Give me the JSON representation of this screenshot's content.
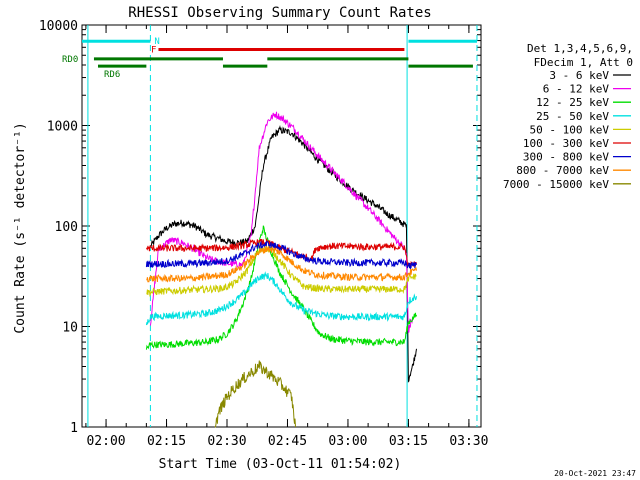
{
  "chart_data": {
    "type": "line",
    "title": "RHESSI Observing Summary Count Rates",
    "xlabel": "Start Time (03-Oct-11 01:54:02)",
    "ylabel": "Count Rate (s⁻¹ detector⁻¹)",
    "y_scale": "log",
    "ylim": [
      1,
      10000
    ],
    "xlim": [
      "01:54:02",
      "03:33:00"
    ],
    "x_ticks": [
      "02:00",
      "02:15",
      "02:30",
      "02:45",
      "03:00",
      "03:15",
      "03:30"
    ],
    "y_ticks": [
      1,
      10,
      100,
      1000,
      10000
    ],
    "grid": false,
    "legend_position": "right",
    "legend_header": [
      "Det 1,3,4,5,6,9,",
      "FDecim 1, Att 0"
    ],
    "footer_date": "20-Oct-2021 23:47",
    "colors": {
      "cyan": "#00e0e0",
      "flag_red": "#dd0000",
      "flag_green": "#007700"
    },
    "flags": [
      {
        "label": "N",
        "color": "#00e0e0",
        "y": 6900,
        "segments": [
          [
            "01:54:02",
            "02:11:00"
          ],
          [
            "03:15:00",
            "03:32:00"
          ]
        ]
      },
      {
        "label": "F",
        "color": "#dd0000",
        "y": 5700,
        "segments": [
          [
            "02:13:00",
            "03:14:00"
          ]
        ]
      },
      {
        "label": "RD0",
        "color": "#007700",
        "y": 4600,
        "segments": [
          [
            "01:57:00",
            "02:29:00"
          ],
          [
            "02:40:00",
            "03:15:00"
          ]
        ]
      },
      {
        "label": "RD6",
        "color": "#007700",
        "y": 3900,
        "segments": [
          [
            "01:58:00",
            "02:10:00"
          ],
          [
            "02:29:00",
            "02:40:00"
          ],
          [
            "03:15:00",
            "03:31:00"
          ]
        ]
      }
    ],
    "vlines": [
      {
        "time": "01:55:30",
        "color": "#00e0e0",
        "style": "solid"
      },
      {
        "time": "02:11:00",
        "color": "#00e0e0",
        "style": "dashed"
      },
      {
        "time": "03:14:40",
        "color": "#00e0e0",
        "style": "solid"
      },
      {
        "time": "03:32:00",
        "color": "#00e0e0",
        "style": "dashed"
      }
    ],
    "series": [
      {
        "name": "3 - 6 keV",
        "color": "#000000",
        "x": [
          "02:11:00",
          "02:13:00",
          "02:15:00",
          "02:17:00",
          "02:19:00",
          "02:22:00",
          "02:25:00",
          "02:28:00",
          "02:30:00",
          "02:33:00",
          "02:35:00",
          "02:37:00",
          "02:39:00",
          "02:41:00",
          "02:43:00",
          "02:46:00",
          "02:49:00",
          "02:52:00",
          "02:55:00",
          "02:58:00",
          "03:01:00",
          "03:04:00",
          "03:07:00",
          "03:10:00",
          "03:13:00",
          "03:14:30",
          "03:15:00",
          "03:16:00",
          "03:17:00"
        ],
        "y": [
          62,
          80,
          95,
          105,
          108,
          100,
          82,
          75,
          70,
          68,
          70,
          100,
          400,
          750,
          900,
          850,
          650,
          480,
          370,
          290,
          230,
          190,
          160,
          130,
          110,
          100,
          3,
          4,
          6
        ]
      },
      {
        "name": "6 - 12 keV",
        "color": "#ee00ee",
        "x": [
          "02:11:00",
          "02:13:00",
          "02:16:00",
          "02:19:00",
          "02:22:00",
          "02:25:00",
          "02:28:00",
          "02:31:00",
          "02:34:00",
          "02:36:00",
          "02:38:00",
          "02:40:00",
          "02:42:00",
          "02:44:00",
          "02:47:00",
          "02:50:00",
          "02:53:00",
          "02:56:00",
          "02:59:00",
          "03:02:00",
          "03:05:00",
          "03:08:00",
          "03:11:00",
          "03:14:00",
          "03:14:30",
          "03:15:00",
          "03:16:00"
        ],
        "y": [
          10.5,
          58,
          73,
          68,
          58,
          48,
          44,
          42,
          41,
          80,
          600,
          1100,
          1300,
          1150,
          900,
          650,
          480,
          360,
          270,
          200,
          150,
          110,
          80,
          60,
          52,
          9,
          12
        ]
      },
      {
        "name": "12 - 25 keV",
        "color": "#00dd00",
        "x": [
          "02:10:00",
          "02:11:00",
          "02:15:00",
          "02:20:00",
          "02:25:00",
          "02:28:00",
          "02:30:00",
          "02:32:00",
          "02:34:00",
          "02:36:00",
          "02:38:00",
          "02:39:00",
          "02:41:00",
          "02:43:00",
          "02:46:00",
          "02:49:00",
          "02:51:00",
          "02:53:00",
          "02:56:00",
          "03:00:00",
          "03:05:00",
          "03:10:00",
          "03:14:00",
          "03:15:00",
          "03:17:00"
        ],
        "y": [
          6,
          6.6,
          6.6,
          6.8,
          7,
          7.5,
          8.5,
          11,
          17,
          30,
          70,
          95,
          55,
          35,
          22,
          15,
          11,
          8.5,
          7.5,
          7.2,
          7,
          7,
          7,
          11,
          13
        ]
      },
      {
        "name": "25 - 50 keV",
        "color": "#00e0e0",
        "x": [
          "02:10:00",
          "02:11:00",
          "02:15:00",
          "02:20:00",
          "02:25:00",
          "02:28:00",
          "02:30:00",
          "02:32:00",
          "02:34:00",
          "02:36:00",
          "02:38:00",
          "02:40:00",
          "02:42:00",
          "02:44:00",
          "02:46:00",
          "02:49:00",
          "02:52:00",
          "02:55:00",
          "03:00:00",
          "03:05:00",
          "03:10:00",
          "03:14:00",
          "03:15:00",
          "03:17:00"
        ],
        "y": [
          10.5,
          12.5,
          12.8,
          13,
          13.5,
          14.5,
          16,
          18,
          21,
          26,
          31,
          32,
          27,
          21,
          17,
          14.5,
          13.5,
          12.8,
          12.5,
          12.5,
          12.5,
          12.5,
          18,
          20
        ]
      },
      {
        "name": "50 - 100 keV",
        "color": "#cccc00",
        "x": [
          "02:10:00",
          "02:11:00",
          "02:15:00",
          "02:20:00",
          "02:25:00",
          "02:29:00",
          "02:32:00",
          "02:35:00",
          "02:37:00",
          "02:39:00",
          "02:41:00",
          "02:43:00",
          "02:46:00",
          "02:49:00",
          "02:52:00",
          "02:55:00",
          "03:00:00",
          "03:05:00",
          "03:10:00",
          "03:14:00",
          "03:15:00",
          "03:17:00"
        ],
        "y": [
          22,
          22,
          22.5,
          23,
          23.5,
          24,
          27,
          36,
          50,
          60,
          58,
          46,
          32,
          25,
          24,
          23.5,
          23.5,
          23.5,
          23.5,
          23.5,
          30,
          32
        ]
      },
      {
        "name": "100 - 300 keV",
        "color": "#dd0000",
        "x": [
          "02:10:00",
          "02:11:00",
          "02:15:00",
          "02:20:00",
          "02:25:00",
          "02:30:00",
          "02:34:00",
          "02:37:00",
          "02:39:00",
          "02:41:00",
          "02:43:00",
          "02:46:00",
          "02:49:00",
          "02:51:00",
          "02:52:00",
          "02:55:00",
          "03:00:00",
          "03:05:00",
          "03:10:00",
          "03:14:00",
          "03:15:00",
          "03:17:00"
        ],
        "y": [
          60,
          60,
          60,
          60,
          60,
          61,
          64,
          68,
          69,
          66,
          60,
          55,
          50,
          47,
          60,
          63,
          63,
          62,
          62,
          62,
          40,
          42
        ]
      },
      {
        "name": "300 - 800 keV",
        "color": "#0000cc",
        "x": [
          "02:10:00",
          "02:11:00",
          "02:15:00",
          "02:20:00",
          "02:25:00",
          "02:30:00",
          "02:34:00",
          "02:37:00",
          "02:40:00",
          "02:43:00",
          "02:46:00",
          "02:49:00",
          "02:52:00",
          "02:55:00",
          "03:00:00",
          "03:05:00",
          "03:10:00",
          "03:14:00",
          "03:15:00",
          "03:17:00"
        ],
        "y": [
          42,
          42,
          42,
          42,
          43,
          45,
          52,
          62,
          66,
          62,
          54,
          48,
          45,
          44,
          43,
          43,
          43,
          43,
          40,
          41
        ]
      },
      {
        "name": "800 - 7000 keV",
        "color": "#ff8800",
        "x": [
          "02:10:00",
          "02:11:00",
          "02:15:00",
          "02:20:00",
          "02:25:00",
          "02:30:00",
          "02:34:00",
          "02:37:00",
          "02:40:00",
          "02:43:00",
          "02:46:00",
          "02:49:00",
          "02:52:00",
          "02:55:00",
          "03:00:00",
          "03:05:00",
          "03:10:00",
          "03:14:00",
          "03:15:00",
          "03:17:00"
        ],
        "y": [
          30,
          30,
          30,
          30,
          31,
          33,
          40,
          52,
          60,
          55,
          44,
          36,
          33,
          32,
          31,
          31,
          31,
          31,
          34,
          36
        ]
      },
      {
        "name": "7000 - 15000 keV",
        "color": "#888800",
        "x": [
          "02:27:00",
          "02:28:00",
          "02:30:00",
          "02:32:00",
          "02:34:00",
          "02:36:00",
          "02:38:00",
          "02:40:00",
          "02:42:00",
          "02:44:00",
          "02:46:00",
          "02:47:00"
        ],
        "y": [
          1,
          1.4,
          2,
          2.5,
          3,
          3.5,
          4,
          3.5,
          3,
          2.5,
          2,
          1
        ]
      }
    ]
  }
}
